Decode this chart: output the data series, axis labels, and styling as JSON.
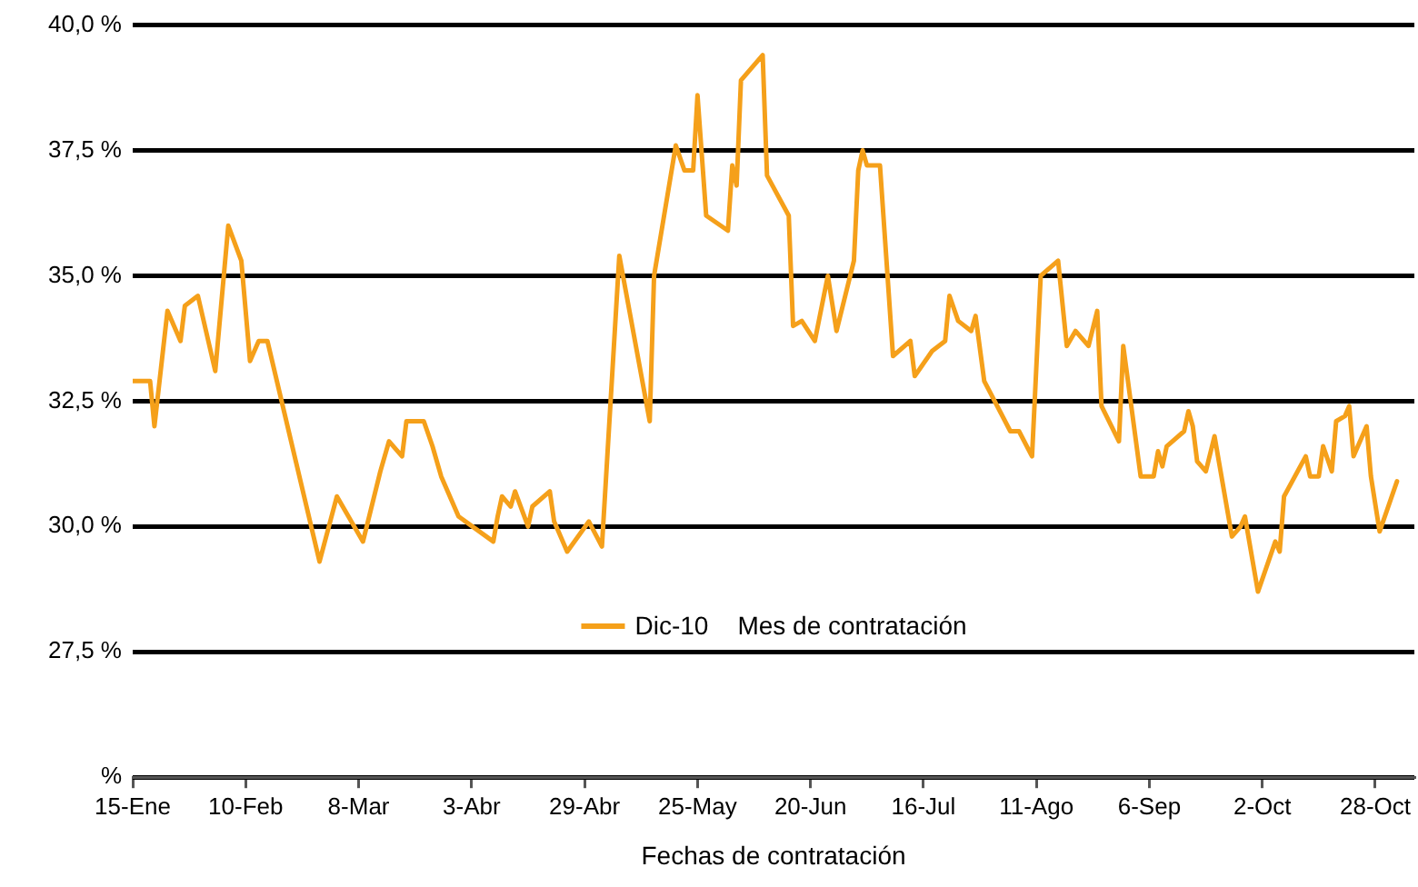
{
  "chart_data": {
    "type": "line",
    "xlabel": "Fechas de contratación",
    "legend_title": "Mes de contratación",
    "legend": "bottom",
    "grid": "y",
    "marker": "none",
    "line_style": "solid",
    "xlim": [
      "--01-15",
      "--11-06"
    ],
    "xticks": [
      {
        "value": "--01-15",
        "label": "15-Ene"
      },
      {
        "value": "--02-10",
        "label": "10-Feb"
      },
      {
        "value": "--03-08",
        "label": "8-Mar"
      },
      {
        "value": "--04-03",
        "label": "3-Abr"
      },
      {
        "value": "--04-29",
        "label": "29-Abr"
      },
      {
        "value": "--05-25",
        "label": "25-May"
      },
      {
        "value": "--06-20",
        "label": "20-Jun"
      },
      {
        "value": "--07-16",
        "label": "16-Jul"
      },
      {
        "value": "--08-11",
        "label": "11-Ago"
      },
      {
        "value": "--09-06",
        "label": "6-Sep"
      },
      {
        "value": "--10-02",
        "label": "2-Oct"
      },
      {
        "value": "--10-28",
        "label": "28-Oct"
      }
    ],
    "ylim": [
      25,
      40
    ],
    "yticks": [
      {
        "value": 25,
        "label": "%"
      },
      {
        "value": 27.5,
        "label": "27,5 %"
      },
      {
        "value": 30,
        "label": "30,0 %"
      },
      {
        "value": 32.5,
        "label": "32,5 %"
      },
      {
        "value": 35,
        "label": "35,0 %"
      },
      {
        "value": 37.5,
        "label": "37,5 %"
      },
      {
        "value": 40,
        "label": "40,0 %"
      }
    ],
    "x": [
      "--01-15",
      "--01-19",
      "--01-20",
      "--01-23",
      "--01-26",
      "--01-27",
      "--01-30",
      "--02-03",
      "--02-06",
      "--02-09",
      "--02-11",
      "--02-13",
      "--02-15",
      "--02-27",
      "--03-03",
      "--03-09",
      "--03-13",
      "--03-15",
      "--03-18",
      "--03-19",
      "--03-23",
      "--03-25",
      "--03-27",
      "--03-31",
      "--04-08",
      "--04-09",
      "--04-10",
      "--04-12",
      "--04-13",
      "--04-16",
      "--04-17",
      "--04-21",
      "--04-22",
      "--04-25",
      "--04-30",
      "--05-03",
      "--05-07",
      "--05-14",
      "--05-15",
      "--05-20",
      "--05-22",
      "--05-24",
      "--05-25",
      "--05-27",
      "--06-01",
      "--06-02",
      "--06-03",
      "--06-04",
      "--06-09",
      "--06-10",
      "--06-15",
      "--06-16",
      "--06-18",
      "--06-21",
      "--06-24",
      "--06-26",
      "--06-30",
      "--07-01",
      "--07-02",
      "--07-03",
      "--07-06",
      "--07-09",
      "--07-13",
      "--07-14",
      "--07-18",
      "--07-21",
      "--07-22",
      "--07-24",
      "--07-27",
      "--07-28",
      "--07-30",
      "--08-05",
      "--08-07",
      "--08-10",
      "--08-12",
      "--08-16",
      "--08-18",
      "--08-20",
      "--08-23",
      "--08-25",
      "--08-26",
      "--08-30",
      "--08-31",
      "--09-04",
      "--09-07",
      "--09-08",
      "--09-09",
      "--09-10",
      "--09-14",
      "--09-15",
      "--09-16",
      "--09-17",
      "--09-19",
      "--09-21",
      "--09-25",
      "--09-27",
      "--09-28",
      "--10-01",
      "--10-05",
      "--10-06",
      "--10-07",
      "--10-12",
      "--10-13",
      "--10-15",
      "--10-16",
      "--10-18",
      "--10-19",
      "--10-21",
      "--10-22",
      "--10-23",
      "--10-26",
      "--10-27",
      "--10-29",
      "--11-02"
    ],
    "series": [
      {
        "name": "Dic-10",
        "color": "#f5a01a",
        "values": [
          32.9,
          32.9,
          32.0,
          34.3,
          33.7,
          34.4,
          34.6,
          33.1,
          36.0,
          35.3,
          33.3,
          33.7,
          33.7,
          29.3,
          30.6,
          29.7,
          31.1,
          31.7,
          31.4,
          32.1,
          32.1,
          31.6,
          31.0,
          30.2,
          29.7,
          30.2,
          30.6,
          30.4,
          30.7,
          30.0,
          30.4,
          30.7,
          30.1,
          29.5,
          30.1,
          29.6,
          35.4,
          32.1,
          35.0,
          37.6,
          37.1,
          37.1,
          38.6,
          36.2,
          35.9,
          37.2,
          36.8,
          38.9,
          39.4,
          37.0,
          36.2,
          34.0,
          34.1,
          33.7,
          35.0,
          33.9,
          35.3,
          37.1,
          37.5,
          37.2,
          37.2,
          33.4,
          33.7,
          33.0,
          33.5,
          33.7,
          34.6,
          34.1,
          33.9,
          34.2,
          32.9,
          31.9,
          31.9,
          31.4,
          35.0,
          35.3,
          33.6,
          33.9,
          33.6,
          34.3,
          32.4,
          31.7,
          33.6,
          31.0,
          31.0,
          31.5,
          31.2,
          31.6,
          31.9,
          32.3,
          32.0,
          31.3,
          31.1,
          31.8,
          29.8,
          30.0,
          30.2,
          28.7,
          29.7,
          29.5,
          30.6,
          31.4,
          31.0,
          31.0,
          31.6,
          31.1,
          32.1,
          32.2,
          32.4,
          31.4,
          32.0,
          31.0,
          29.9,
          30.9
        ]
      }
    ]
  }
}
